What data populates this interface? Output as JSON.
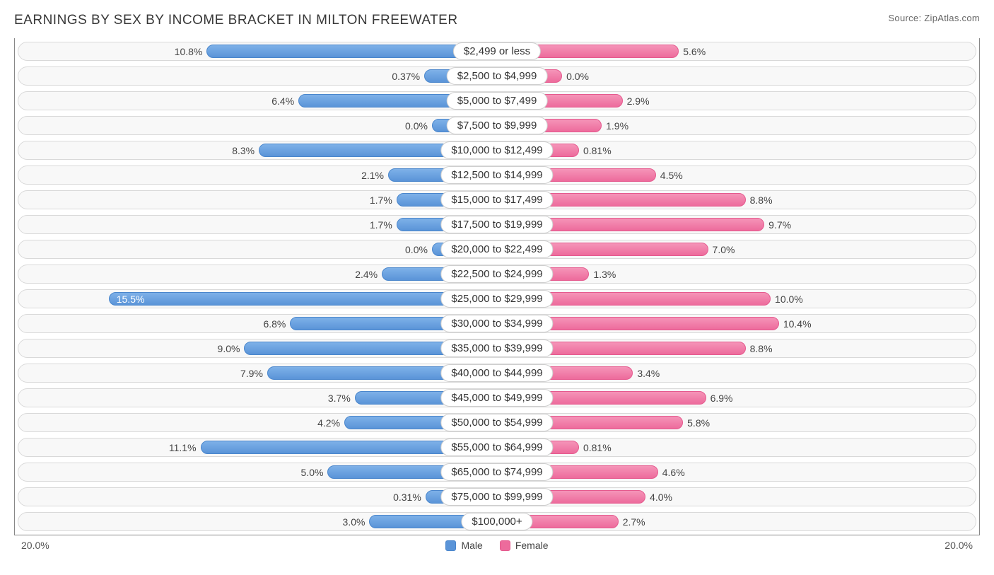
{
  "title": "EARNINGS BY SEX BY INCOME BRACKET IN MILTON FREEWATER",
  "source": "Source: ZipAtlas.com",
  "axis_max_label": "20.0%",
  "axis_max_value": 20.0,
  "colors": {
    "male_bar": "#5a94d8",
    "male_bar_light": "#7eb1e8",
    "male_border": "#4a86cc",
    "female_bar": "#ed6b9c",
    "female_bar_light": "#f594b8",
    "female_border": "#e55a8e",
    "track_bg": "#f8f8f8",
    "track_border": "#d9d9d9",
    "center_bg": "#ffffff",
    "center_border": "#cfcfcf",
    "axis_border": "#888888",
    "text": "#383838"
  },
  "legend": {
    "male": "Male",
    "female": "Female"
  },
  "center_label_half_width_pct": 11.5,
  "base_bar_offset_pct": 2.0,
  "rows": [
    {
      "bracket": "$2,499 or less",
      "male": 10.8,
      "male_label": "10.8%",
      "female": 5.6,
      "female_label": "5.6%"
    },
    {
      "bracket": "$2,500 to $4,999",
      "male": 0.37,
      "male_label": "0.37%",
      "female": 0.0,
      "female_label": "0.0%"
    },
    {
      "bracket": "$5,000 to $7,499",
      "male": 6.4,
      "male_label": "6.4%",
      "female": 2.9,
      "female_label": "2.9%"
    },
    {
      "bracket": "$7,500 to $9,999",
      "male": 0.0,
      "male_label": "0.0%",
      "female": 1.9,
      "female_label": "1.9%"
    },
    {
      "bracket": "$10,000 to $12,499",
      "male": 8.3,
      "male_label": "8.3%",
      "female": 0.81,
      "female_label": "0.81%"
    },
    {
      "bracket": "$12,500 to $14,999",
      "male": 2.1,
      "male_label": "2.1%",
      "female": 4.5,
      "female_label": "4.5%"
    },
    {
      "bracket": "$15,000 to $17,499",
      "male": 1.7,
      "male_label": "1.7%",
      "female": 8.8,
      "female_label": "8.8%"
    },
    {
      "bracket": "$17,500 to $19,999",
      "male": 1.7,
      "male_label": "1.7%",
      "female": 9.7,
      "female_label": "9.7%"
    },
    {
      "bracket": "$20,000 to $22,499",
      "male": 0.0,
      "male_label": "0.0%",
      "female": 7.0,
      "female_label": "7.0%"
    },
    {
      "bracket": "$22,500 to $24,999",
      "male": 2.4,
      "male_label": "2.4%",
      "female": 1.3,
      "female_label": "1.3%"
    },
    {
      "bracket": "$25,000 to $29,999",
      "male": 15.5,
      "male_label": "15.5%",
      "female": 10.0,
      "female_label": "10.0%"
    },
    {
      "bracket": "$30,000 to $34,999",
      "male": 6.8,
      "male_label": "6.8%",
      "female": 10.4,
      "female_label": "10.4%"
    },
    {
      "bracket": "$35,000 to $39,999",
      "male": 9.0,
      "male_label": "9.0%",
      "female": 8.8,
      "female_label": "8.8%"
    },
    {
      "bracket": "$40,000 to $44,999",
      "male": 7.9,
      "male_label": "7.9%",
      "female": 3.4,
      "female_label": "3.4%"
    },
    {
      "bracket": "$45,000 to $49,999",
      "male": 3.7,
      "male_label": "3.7%",
      "female": 6.9,
      "female_label": "6.9%"
    },
    {
      "bracket": "$50,000 to $54,999",
      "male": 4.2,
      "male_label": "4.2%",
      "female": 5.8,
      "female_label": "5.8%"
    },
    {
      "bracket": "$55,000 to $64,999",
      "male": 11.1,
      "male_label": "11.1%",
      "female": 0.81,
      "female_label": "0.81%"
    },
    {
      "bracket": "$65,000 to $74,999",
      "male": 5.0,
      "male_label": "5.0%",
      "female": 4.6,
      "female_label": "4.6%"
    },
    {
      "bracket": "$75,000 to $99,999",
      "male": 0.31,
      "male_label": "0.31%",
      "female": 4.0,
      "female_label": "4.0%"
    },
    {
      "bracket": "$100,000+",
      "male": 3.0,
      "male_label": "3.0%",
      "female": 2.7,
      "female_label": "2.7%"
    }
  ]
}
